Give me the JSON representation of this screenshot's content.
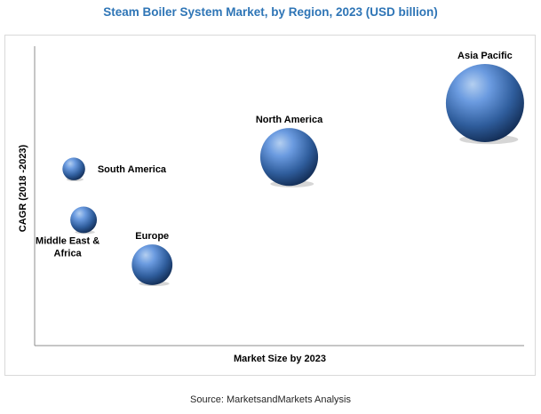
{
  "chart_data": {
    "type": "bubble",
    "title": "Steam Boiler System Market, by Region, 2023 (USD billion)",
    "xlabel": "Market Size by 2023",
    "ylabel": "CAGR (2018 -2023)",
    "source": "Source: MarketsandMarkets Analysis",
    "axis_ticks_shown": false,
    "grid": false,
    "legend": "none",
    "bubble_color": "#4f81bd",
    "series": [
      {
        "label": "Asia Pacific",
        "x": 0.92,
        "y": 0.81,
        "size": 1.0,
        "label_position": "above"
      },
      {
        "label": "North America",
        "x": 0.52,
        "y": 0.63,
        "size": 0.74,
        "label_position": "above"
      },
      {
        "label": "South America",
        "x": 0.08,
        "y": 0.59,
        "size": 0.29,
        "label_position": "right"
      },
      {
        "label": "Europe",
        "x": 0.24,
        "y": 0.27,
        "size": 0.52,
        "label_position": "above"
      },
      {
        "label": "Middle East & Africa",
        "x": 0.1,
        "y": 0.42,
        "size": 0.34,
        "label_position": "below"
      }
    ]
  }
}
